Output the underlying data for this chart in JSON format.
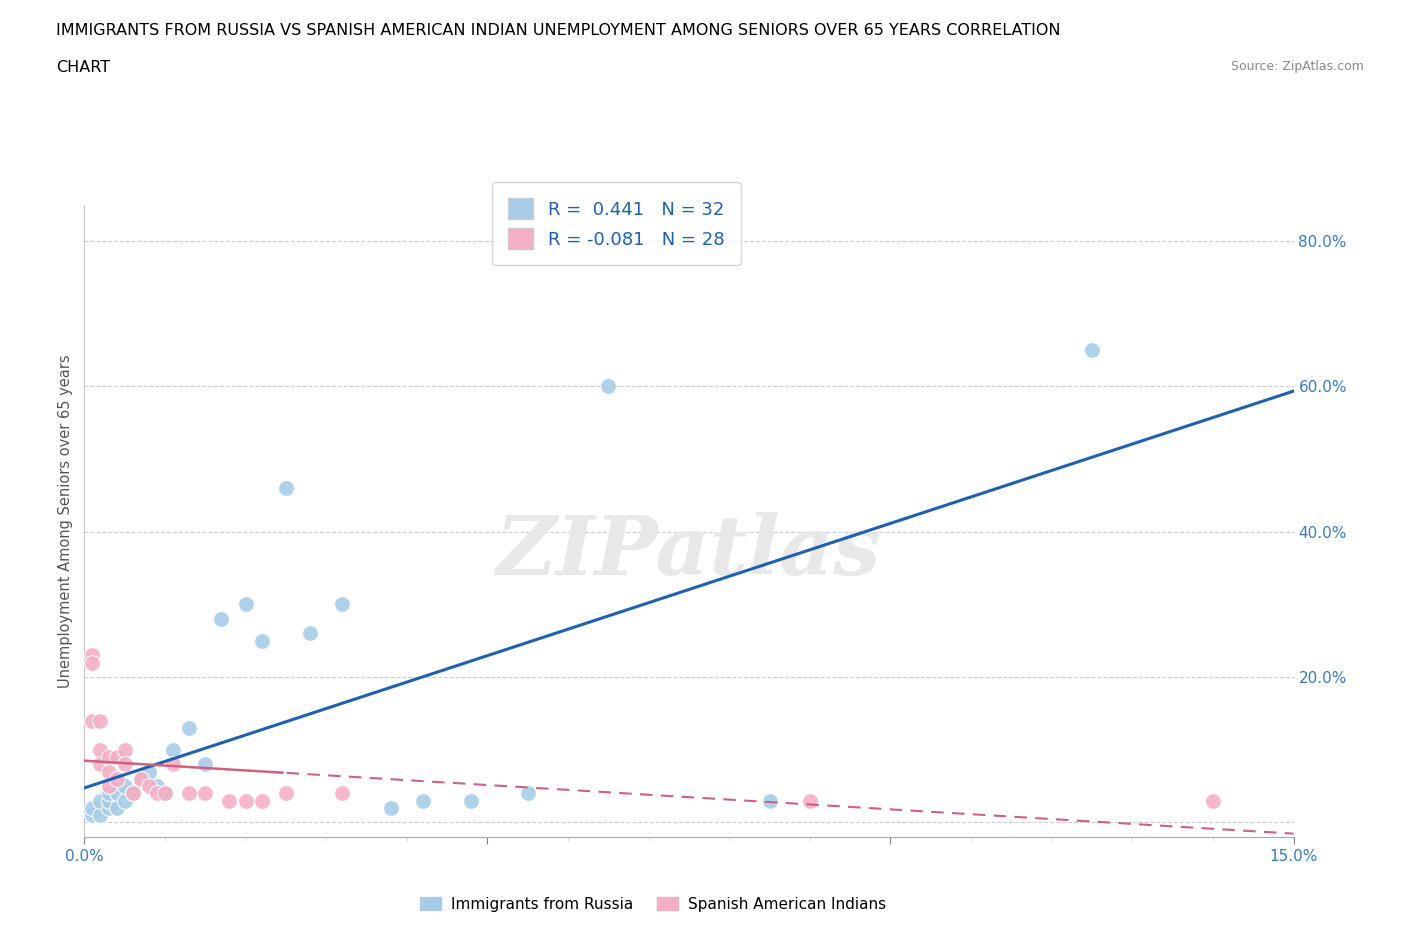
{
  "title_line1": "IMMIGRANTS FROM RUSSIA VS SPANISH AMERICAN INDIAN UNEMPLOYMENT AMONG SENIORS OVER 65 YEARS CORRELATION",
  "title_line2": "CHART",
  "source_text": "Source: ZipAtlas.com",
  "ylabel": "Unemployment Among Seniors over 65 years",
  "xlabel_russia": "Immigrants from Russia",
  "xlabel_indian": "Spanish American Indians",
  "xlim": [
    0.0,
    0.15
  ],
  "ylim": [
    -0.02,
    0.85
  ],
  "R_russia": 0.441,
  "N_russia": 32,
  "R_indian": -0.081,
  "N_indian": 28,
  "color_russia": "#a8cce8",
  "color_indian": "#f4afc4",
  "trendline_russia": "#2060b0",
  "trendline_indian": "#d06080",
  "russia_x": [
    0.001,
    0.001,
    0.002,
    0.002,
    0.003,
    0.003,
    0.003,
    0.004,
    0.004,
    0.005,
    0.005,
    0.006,
    0.007,
    0.008,
    0.009,
    0.01,
    0.011,
    0.013,
    0.015,
    0.017,
    0.02,
    0.022,
    0.025,
    0.028,
    0.032,
    0.038,
    0.042,
    0.048,
    0.055,
    0.065,
    0.085,
    0.125
  ],
  "russia_y": [
    0.01,
    0.02,
    0.01,
    0.03,
    0.02,
    0.03,
    0.04,
    0.02,
    0.04,
    0.03,
    0.05,
    0.04,
    0.06,
    0.07,
    0.05,
    0.04,
    0.1,
    0.13,
    0.08,
    0.28,
    0.3,
    0.25,
    0.46,
    0.26,
    0.3,
    0.02,
    0.03,
    0.03,
    0.04,
    0.6,
    0.03,
    0.65
  ],
  "indian_x": [
    0.001,
    0.001,
    0.001,
    0.002,
    0.002,
    0.002,
    0.003,
    0.003,
    0.003,
    0.004,
    0.004,
    0.005,
    0.005,
    0.006,
    0.007,
    0.008,
    0.009,
    0.01,
    0.011,
    0.013,
    0.015,
    0.018,
    0.02,
    0.022,
    0.025,
    0.032,
    0.09,
    0.14
  ],
  "indian_y": [
    0.23,
    0.22,
    0.14,
    0.1,
    0.08,
    0.14,
    0.09,
    0.07,
    0.05,
    0.06,
    0.09,
    0.1,
    0.08,
    0.04,
    0.06,
    0.05,
    0.04,
    0.04,
    0.08,
    0.04,
    0.04,
    0.03,
    0.03,
    0.03,
    0.04,
    0.04,
    0.03,
    0.03
  ]
}
